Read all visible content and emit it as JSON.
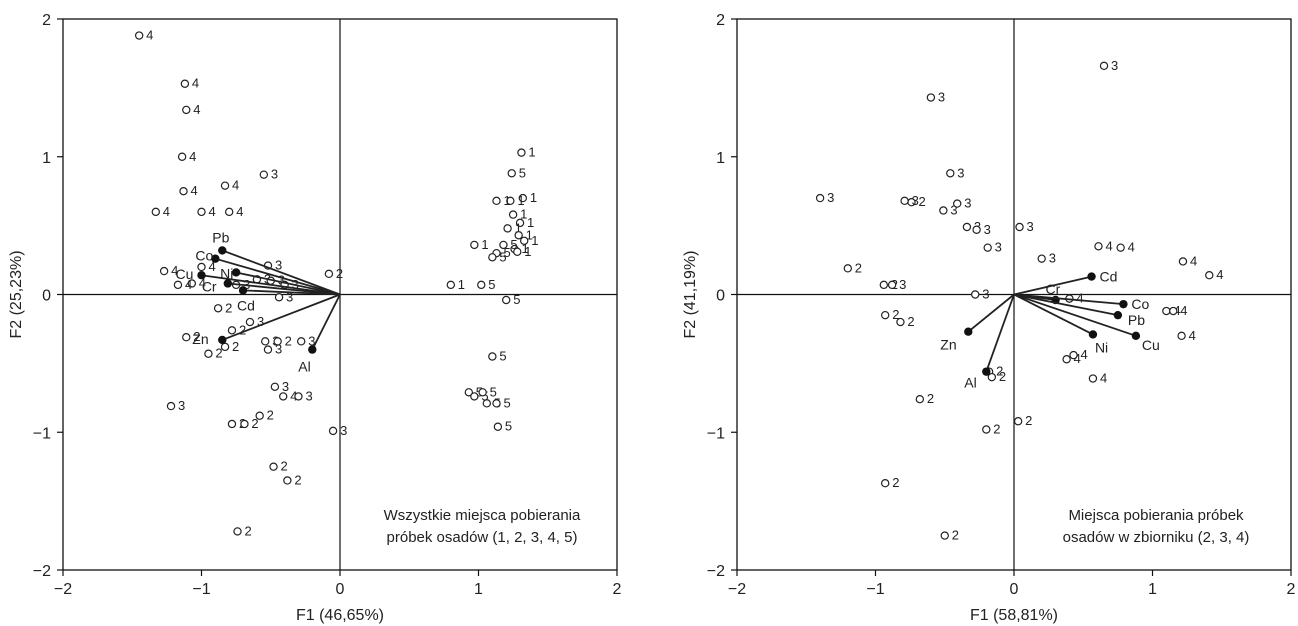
{
  "chart_data": [
    {
      "type": "scatter",
      "subtype": "biplot",
      "xlabel": "F1 (46,65%)",
      "ylabel": "F2 (25,23%)",
      "xlim": [
        -2,
        2
      ],
      "ylim": [
        -2,
        2
      ],
      "xticks": [
        "−2",
        "−1",
        "0",
        "1",
        "2"
      ],
      "yticks": [
        "−2",
        "−1",
        "0",
        "1",
        "2"
      ],
      "grid": false,
      "annotation": [
        "Wszystkie miejsca pobierania",
        "próbek osadów (1, 2, 3, 4, 5)"
      ],
      "vectors": [
        {
          "name": "Pb",
          "x": -0.85,
          "y": 0.32
        },
        {
          "name": "Co",
          "x": -0.9,
          "y": 0.26
        },
        {
          "name": "Cu",
          "x": -1.0,
          "y": 0.14
        },
        {
          "name": "Ni",
          "x": -0.75,
          "y": 0.16
        },
        {
          "name": "Cr",
          "x": -0.81,
          "y": 0.08
        },
        {
          "name": "Cd",
          "x": -0.7,
          "y": 0.03
        },
        {
          "name": "Zn",
          "x": -0.85,
          "y": -0.33
        },
        {
          "name": "Al",
          "x": -0.2,
          "y": -0.4
        }
      ],
      "points": [
        {
          "x": -1.45,
          "y": 1.88,
          "label": "4"
        },
        {
          "x": -1.12,
          "y": 1.53,
          "label": "4"
        },
        {
          "x": -1.11,
          "y": 1.34,
          "label": "4"
        },
        {
          "x": -1.14,
          "y": 1.0,
          "label": "4"
        },
        {
          "x": -1.13,
          "y": 0.75,
          "label": "4"
        },
        {
          "x": -0.83,
          "y": 0.79,
          "label": "4"
        },
        {
          "x": -0.55,
          "y": 0.87,
          "label": "3"
        },
        {
          "x": -1.33,
          "y": 0.6,
          "label": "4"
        },
        {
          "x": -1.0,
          "y": 0.6,
          "label": "4"
        },
        {
          "x": -0.8,
          "y": 0.6,
          "label": "4"
        },
        {
          "x": -1.27,
          "y": 0.17,
          "label": "4"
        },
        {
          "x": -1.0,
          "y": 0.2,
          "label": "4"
        },
        {
          "x": -1.07,
          "y": 0.08,
          "label": "4"
        },
        {
          "x": -1.17,
          "y": 0.07,
          "label": "4"
        },
        {
          "x": -0.52,
          "y": 0.21,
          "label": "3"
        },
        {
          "x": -0.6,
          "y": 0.11,
          "label": "3"
        },
        {
          "x": -0.5,
          "y": 0.1,
          "label": "3"
        },
        {
          "x": -0.4,
          "y": 0.07,
          "label": "3"
        },
        {
          "x": -0.08,
          "y": 0.15,
          "label": "2"
        },
        {
          "x": -0.75,
          "y": 0.07,
          "label": "3"
        },
        {
          "x": -0.44,
          "y": -0.02,
          "label": "3"
        },
        {
          "x": -0.88,
          "y": -0.1,
          "label": "2"
        },
        {
          "x": -0.65,
          "y": -0.2,
          "label": "3"
        },
        {
          "x": -0.78,
          "y": -0.26,
          "label": "2"
        },
        {
          "x": -1.11,
          "y": -0.31,
          "label": "2"
        },
        {
          "x": -0.83,
          "y": -0.38,
          "label": "2"
        },
        {
          "x": -0.95,
          "y": -0.43,
          "label": "2"
        },
        {
          "x": -0.54,
          "y": -0.34,
          "label": "3"
        },
        {
          "x": -0.52,
          "y": -0.4,
          "label": "3"
        },
        {
          "x": -0.45,
          "y": -0.34,
          "label": "2"
        },
        {
          "x": -0.28,
          "y": -0.34,
          "label": "3"
        },
        {
          "x": -0.47,
          "y": -0.67,
          "label": "3"
        },
        {
          "x": -0.41,
          "y": -0.74,
          "label": "4"
        },
        {
          "x": -0.3,
          "y": -0.74,
          "label": "3"
        },
        {
          "x": -1.22,
          "y": -0.81,
          "label": "3"
        },
        {
          "x": -0.78,
          "y": -0.94,
          "label": "2"
        },
        {
          "x": -0.69,
          "y": -0.94,
          "label": "2"
        },
        {
          "x": -0.58,
          "y": -0.88,
          "label": "2"
        },
        {
          "x": -0.05,
          "y": -0.99,
          "label": "3"
        },
        {
          "x": -0.48,
          "y": -1.25,
          "label": "2"
        },
        {
          "x": -0.38,
          "y": -1.35,
          "label": "2"
        },
        {
          "x": -0.74,
          "y": -1.72,
          "label": "2"
        },
        {
          "x": 1.31,
          "y": 1.03,
          "label": "1"
        },
        {
          "x": 1.24,
          "y": 0.88,
          "label": "5"
        },
        {
          "x": 1.32,
          "y": 0.7,
          "label": "1"
        },
        {
          "x": 1.23,
          "y": 0.68,
          "label": "1"
        },
        {
          "x": 1.13,
          "y": 0.68,
          "label": "1"
        },
        {
          "x": 1.25,
          "y": 0.58,
          "label": "1"
        },
        {
          "x": 1.3,
          "y": 0.52,
          "label": "1"
        },
        {
          "x": 1.21,
          "y": 0.48,
          "label": "1"
        },
        {
          "x": 1.29,
          "y": 0.43,
          "label": "1"
        },
        {
          "x": 1.33,
          "y": 0.39,
          "label": "1"
        },
        {
          "x": 0.97,
          "y": 0.36,
          "label": "1"
        },
        {
          "x": 1.26,
          "y": 0.33,
          "label": "1"
        },
        {
          "x": 1.28,
          "y": 0.31,
          "label": "1"
        },
        {
          "x": 1.13,
          "y": 0.3,
          "label": "5"
        },
        {
          "x": 1.1,
          "y": 0.27,
          "label": "5"
        },
        {
          "x": 1.18,
          "y": 0.36,
          "label": "5"
        },
        {
          "x": 0.8,
          "y": 0.07,
          "label": "1"
        },
        {
          "x": 1.02,
          "y": 0.07,
          "label": "5"
        },
        {
          "x": 1.2,
          "y": -0.04,
          "label": "5"
        },
        {
          "x": 1.1,
          "y": -0.45,
          "label": "5"
        },
        {
          "x": 0.93,
          "y": -0.71,
          "label": "5"
        },
        {
          "x": 0.97,
          "y": -0.74,
          "label": "5"
        },
        {
          "x": 1.03,
          "y": -0.71,
          "label": "5"
        },
        {
          "x": 1.06,
          "y": -0.79,
          "label": "5"
        },
        {
          "x": 1.13,
          "y": -0.79,
          "label": "5"
        },
        {
          "x": 1.14,
          "y": -0.96,
          "label": "5"
        }
      ]
    },
    {
      "type": "scatter",
      "subtype": "biplot",
      "xlabel": "F1 (58,81%)",
      "ylabel": "F2 (41,19%)",
      "xlim": [
        -2,
        2
      ],
      "ylim": [
        -2,
        2
      ],
      "xticks": [
        "−2",
        "−1",
        "0",
        "1",
        "2"
      ],
      "yticks": [
        "−2",
        "−1",
        "0",
        "1",
        "2"
      ],
      "grid": false,
      "annotation": [
        "Miejsca pobierania próbek",
        "osadów w zbiorniku (2, 3, 4)"
      ],
      "vectors": [
        {
          "name": "Cd",
          "x": 0.56,
          "y": 0.13
        },
        {
          "name": "Cr",
          "x": 0.3,
          "y": -0.04
        },
        {
          "name": "Co",
          "x": 0.79,
          "y": -0.07
        },
        {
          "name": "Pb",
          "x": 0.75,
          "y": -0.15
        },
        {
          "name": "Ni",
          "x": 0.57,
          "y": -0.29
        },
        {
          "name": "Cu",
          "x": 0.88,
          "y": -0.3
        },
        {
          "name": "Zn",
          "x": -0.33,
          "y": -0.27
        },
        {
          "name": "Al",
          "x": -0.2,
          "y": -0.56
        }
      ],
      "points": [
        {
          "x": 0.65,
          "y": 1.66,
          "label": "3"
        },
        {
          "x": -0.6,
          "y": 1.43,
          "label": "3"
        },
        {
          "x": -0.46,
          "y": 0.88,
          "label": "3"
        },
        {
          "x": -0.74,
          "y": 0.67,
          "label": "2"
        },
        {
          "x": -1.4,
          "y": 0.7,
          "label": "3"
        },
        {
          "x": -0.79,
          "y": 0.68,
          "label": "3"
        },
        {
          "x": -0.51,
          "y": 0.61,
          "label": "3"
        },
        {
          "x": -0.41,
          "y": 0.66,
          "label": "3"
        },
        {
          "x": -0.34,
          "y": 0.49,
          "label": "3"
        },
        {
          "x": -0.27,
          "y": 0.47,
          "label": "3"
        },
        {
          "x": -0.19,
          "y": 0.34,
          "label": "3"
        },
        {
          "x": 0.04,
          "y": 0.49,
          "label": "3"
        },
        {
          "x": 0.2,
          "y": 0.26,
          "label": "3"
        },
        {
          "x": 0.61,
          "y": 0.35,
          "label": "4"
        },
        {
          "x": 0.77,
          "y": 0.34,
          "label": "4"
        },
        {
          "x": 1.22,
          "y": 0.24,
          "label": "4"
        },
        {
          "x": 1.41,
          "y": 0.14,
          "label": "4"
        },
        {
          "x": -1.2,
          "y": 0.19,
          "label": "2"
        },
        {
          "x": -0.94,
          "y": 0.07,
          "label": "2"
        },
        {
          "x": -0.88,
          "y": 0.07,
          "label": "3"
        },
        {
          "x": -0.28,
          "y": 0.0,
          "label": "3"
        },
        {
          "x": 0.4,
          "y": -0.03,
          "label": "4"
        },
        {
          "x": 1.1,
          "y": -0.12,
          "label": "4"
        },
        {
          "x": 1.15,
          "y": -0.12,
          "label": "4"
        },
        {
          "x": 1.21,
          "y": -0.3,
          "label": "4"
        },
        {
          "x": -0.93,
          "y": -0.15,
          "label": "2"
        },
        {
          "x": -0.82,
          "y": -0.2,
          "label": "2"
        },
        {
          "x": 0.38,
          "y": -0.47,
          "label": "4"
        },
        {
          "x": 0.43,
          "y": -0.44,
          "label": "4"
        },
        {
          "x": 0.57,
          "y": -0.61,
          "label": "4"
        },
        {
          "x": -0.18,
          "y": -0.56,
          "label": "2"
        },
        {
          "x": -0.16,
          "y": -0.6,
          "label": "2"
        },
        {
          "x": -0.68,
          "y": -0.76,
          "label": "2"
        },
        {
          "x": -0.2,
          "y": -0.98,
          "label": "2"
        },
        {
          "x": 0.03,
          "y": -0.92,
          "label": "2"
        },
        {
          "x": -0.93,
          "y": -1.37,
          "label": "2"
        },
        {
          "x": -0.5,
          "y": -1.75,
          "label": "2"
        }
      ]
    }
  ]
}
